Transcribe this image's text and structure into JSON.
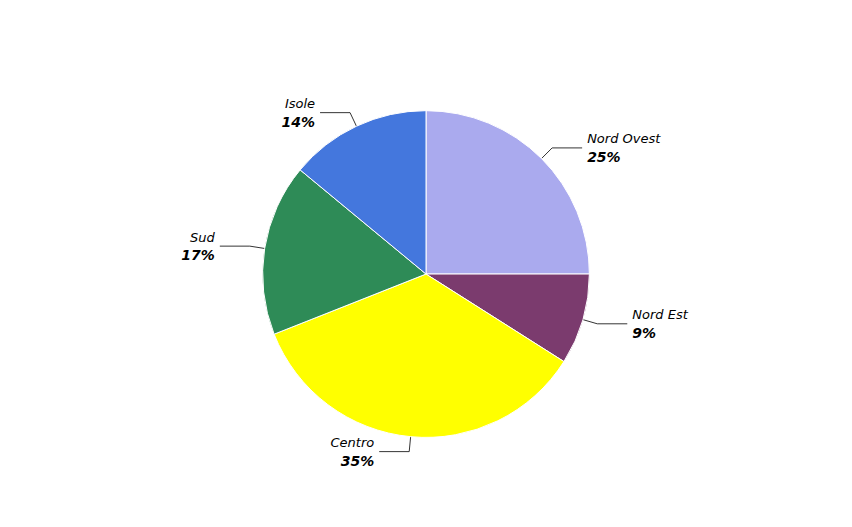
{
  "chart_data": {
    "type": "pie",
    "categories": [
      "Nord Ovest",
      "Nord Est",
      "Centro",
      "Sud",
      "Isole"
    ],
    "values": [
      25,
      9,
      35,
      17,
      14
    ],
    "value_labels": [
      "25%",
      "9%",
      "35%",
      "17%",
      "14%"
    ],
    "colors": [
      "#AAAAEE",
      "#7B3B6E",
      "#FFFF00",
      "#2E8B57",
      "#4477DD"
    ],
    "data_labels": true
  }
}
